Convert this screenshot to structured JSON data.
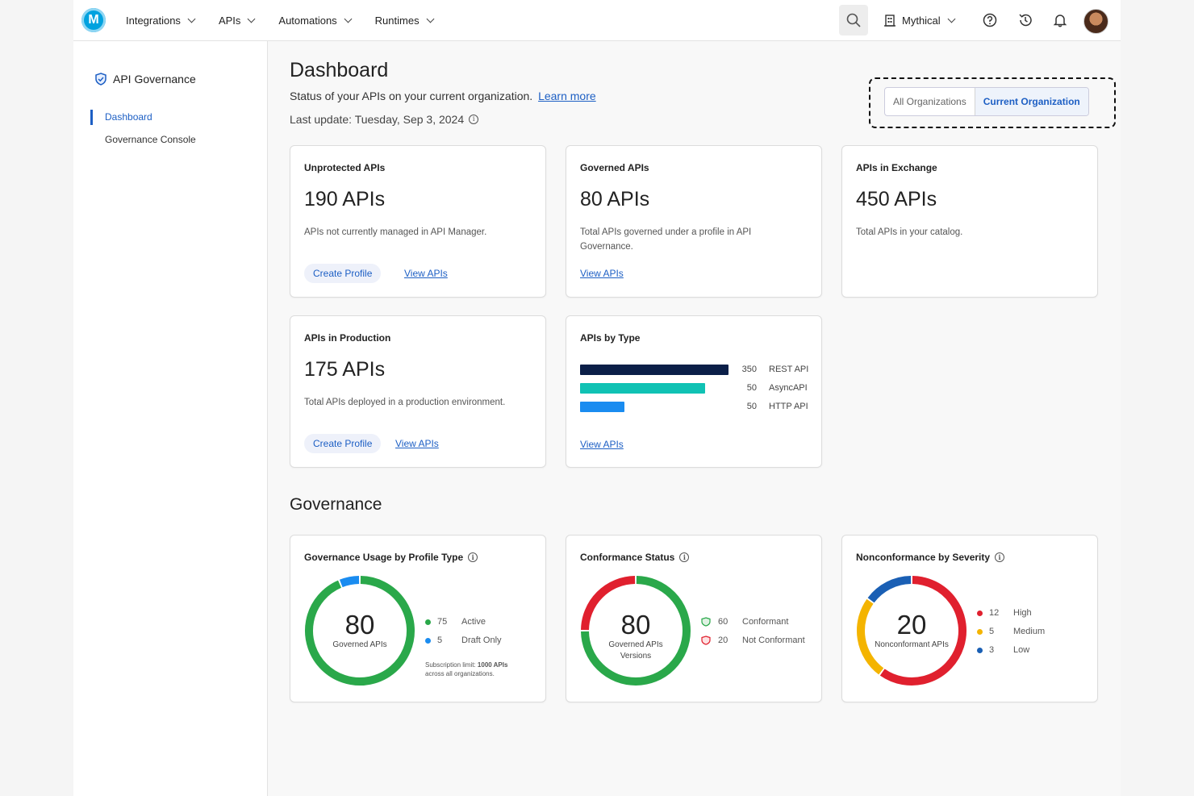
{
  "topbar": {
    "logo": "M",
    "nav": [
      "Integrations",
      "APIs",
      "Automations",
      "Runtimes"
    ],
    "org_name": "Mythical"
  },
  "sidebar": {
    "title": "API Governance",
    "items": [
      "Dashboard",
      "Governance Console"
    ]
  },
  "header": {
    "title": "Dashboard",
    "subtitle": "Status of your APIs on your current organization.",
    "learn_more": "Learn more",
    "last_update": "Last update: Tuesday, Sep 3, 2024"
  },
  "org_toggle": {
    "all": "All Organizations",
    "current": "Current Organization"
  },
  "cards": {
    "unprotected": {
      "title": "Unprotected APIs",
      "value": "190 APIs",
      "desc": "APIs not currently managed in API Manager.",
      "button": "Create Profile",
      "link": "View APIs"
    },
    "governed": {
      "title": "Governed APIs",
      "value": "80 APIs",
      "desc": "Total APIs governed under a profile in API Governance.",
      "link": "View APIs"
    },
    "exchange": {
      "title": "APIs in Exchange",
      "value": "450 APIs",
      "desc": "Total APIs in your catalog."
    },
    "production": {
      "title": "APIs in Production",
      "value": "175 APIs",
      "desc": "Total APIs deployed in a production environment.",
      "button": "Create Profile",
      "link": "View APIs"
    },
    "by_type": {
      "title": "APIs by Type",
      "link": "View APIs"
    }
  },
  "chart_data": [
    {
      "type": "bar",
      "title": "APIs by Type",
      "categories": [
        "REST API",
        "AsyncAPI",
        "HTTP API"
      ],
      "values": [
        350,
        50,
        50
      ],
      "value_labels": [
        "350",
        "50",
        "50"
      ],
      "fill_fraction": [
        1.0,
        0.84,
        0.3
      ],
      "colors": [
        "#0b1f48",
        "#10c2b4",
        "#1a8cf0"
      ]
    },
    {
      "type": "pie",
      "title": "Governance Usage by Profile Type",
      "center_value": "80",
      "center_label": "Governed APIs",
      "categories": [
        "Active",
        "Draft Only"
      ],
      "values": [
        75,
        5
      ],
      "value_labels": [
        "75",
        "5"
      ],
      "colors": [
        "#2aa84a",
        "#1a8cf0"
      ],
      "note_prefix": "Subscription limit:",
      "note_bold": "1000 APIs",
      "note_suffix": "across all organizations."
    },
    {
      "type": "pie",
      "title": "Conformance Status",
      "center_value": "80",
      "center_label": "Governed APIs Versions",
      "categories": [
        "Conformant",
        "Not Conformant"
      ],
      "values": [
        60,
        20
      ],
      "value_labels": [
        "60",
        "20"
      ],
      "colors": [
        "#2aa84a",
        "#e0202e"
      ]
    },
    {
      "type": "pie",
      "title": "Nonconformance by Severity",
      "center_value": "20",
      "center_label": "Nonconformant APIs",
      "categories": [
        "High",
        "Medium",
        "Low"
      ],
      "values": [
        12,
        5,
        3
      ],
      "value_labels": [
        "12",
        "5",
        "3"
      ],
      "colors": [
        "#e0202e",
        "#f4b400",
        "#1a5fb4"
      ]
    }
  ],
  "governance": {
    "title": "Governance"
  }
}
